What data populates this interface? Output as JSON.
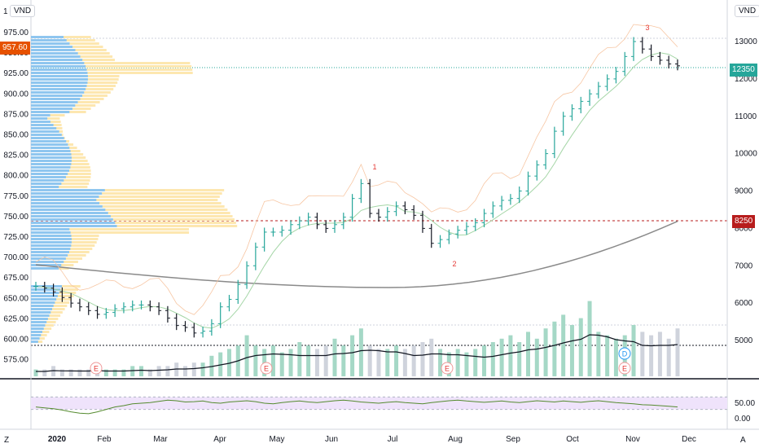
{
  "header": {
    "left_prefix": "1",
    "currency_left": "VND",
    "currency_right": "VND"
  },
  "badges": {
    "left_price": "957.60",
    "right_price": "12350",
    "right_level": "8250",
    "left_color": "#e65100",
    "right_price_color": "#26a69a",
    "right_level_color": "#b71c1c"
  },
  "footer": {
    "left_key": "Z",
    "right_key": "A"
  },
  "chart_data": [
    {
      "type": "candlestick",
      "title": "",
      "x_ticks": [
        "2020",
        "Feb",
        "Mar",
        "Apr",
        "May",
        "Jun",
        "Jul",
        "Aug",
        "Sep",
        "Oct",
        "Nov",
        "Dec"
      ],
      "left_axis_ticks": [
        "975.00",
        "950.00",
        "925.00",
        "900.00",
        "875.00",
        "850.00",
        "825.00",
        "800.00",
        "775.00",
        "750.00",
        "725.00",
        "700.00",
        "675.00",
        "650.00",
        "625.00",
        "600.00",
        "575.00"
      ],
      "right_axis_ticks": [
        "13000",
        "12000",
        "11000",
        "10000",
        "9000",
        "8000",
        "7000",
        "6000",
        "5000"
      ],
      "ylim_right": [
        4600,
        13300
      ],
      "price_path": [
        [
          "Jan",
          6450
        ],
        [
          "Jan",
          6400
        ],
        [
          "Jan",
          6300
        ],
        [
          "Jan",
          6150
        ],
        [
          "Jan",
          6000
        ],
        [
          "Feb",
          5900
        ],
        [
          "Feb",
          5800
        ],
        [
          "Feb",
          5700
        ],
        [
          "Feb",
          5750
        ],
        [
          "Feb",
          5850
        ],
        [
          "Feb",
          5900
        ],
        [
          "Mar",
          5950
        ],
        [
          "Mar",
          5950
        ],
        [
          "Mar",
          5900
        ],
        [
          "Mar",
          5800
        ],
        [
          "Mar",
          5600
        ],
        [
          "Mar",
          5400
        ],
        [
          "Mar",
          5350
        ],
        [
          "Apr",
          5200
        ],
        [
          "Apr",
          5250
        ],
        [
          "Apr",
          5450
        ],
        [
          "Apr",
          5900
        ],
        [
          "Apr",
          6100
        ],
        [
          "Apr",
          6500
        ],
        [
          "May",
          7000
        ],
        [
          "May",
          7500
        ],
        [
          "May",
          7900
        ],
        [
          "May",
          7900
        ],
        [
          "May",
          7950
        ],
        [
          "Jun",
          8100
        ],
        [
          "Jun",
          8200
        ],
        [
          "Jun",
          8300
        ],
        [
          "Jun",
          8100
        ],
        [
          "Jun",
          8000
        ],
        [
          "Jun",
          8100
        ],
        [
          "Jun",
          8300
        ],
        [
          "Jun",
          8800
        ],
        [
          "Jun",
          9200
        ],
        [
          "Jul",
          8400
        ],
        [
          "Jul",
          8300
        ],
        [
          "Jul",
          8450
        ],
        [
          "Jul",
          8600
        ],
        [
          "Jul",
          8500
        ],
        [
          "Jul",
          8350
        ],
        [
          "Jul",
          8000
        ],
        [
          "Aug",
          7600
        ],
        [
          "Aug",
          7700
        ],
        [
          "Aug",
          7850
        ],
        [
          "Aug",
          7950
        ],
        [
          "Aug",
          8050
        ],
        [
          "Aug",
          8150
        ],
        [
          "Sep",
          8400
        ],
        [
          "Sep",
          8600
        ],
        [
          "Sep",
          8750
        ],
        [
          "Sep",
          8800
        ],
        [
          "Sep",
          9000
        ],
        [
          "Sep",
          9400
        ],
        [
          "Sep",
          9700
        ],
        [
          "Oct",
          10000
        ],
        [
          "Oct",
          10600
        ],
        [
          "Oct",
          11000
        ],
        [
          "Oct",
          11200
        ],
        [
          "Oct",
          11400
        ],
        [
          "Oct",
          11600
        ],
        [
          "Oct",
          11800
        ],
        [
          "Oct",
          12000
        ],
        [
          "Nov",
          12200
        ],
        [
          "Nov",
          12600
        ],
        [
          "Nov",
          13000
        ],
        [
          "Nov",
          12800
        ],
        [
          "Nov",
          12600
        ],
        [
          "Nov",
          12500
        ],
        [
          "Nov",
          12400
        ],
        [
          "Nov",
          12350
        ]
      ],
      "volume_relative": [
        0.2,
        0.2,
        0.3,
        0.2,
        0.2,
        0.2,
        0.2,
        0.3,
        0.2,
        0.2,
        0.2,
        0.3,
        0.3,
        0.2,
        0.3,
        0.3,
        0.4,
        0.3,
        0.4,
        0.4,
        0.6,
        0.7,
        0.8,
        0.9,
        1.2,
        0.9,
        0.8,
        0.9,
        0.7,
        0.8,
        1.0,
        0.9,
        0.8,
        0.9,
        1.1,
        0.9,
        1.2,
        1.4,
        0.9,
        0.8,
        0.8,
        0.9,
        0.8,
        0.9,
        1.0,
        1.1,
        0.8,
        0.7,
        0.8,
        0.7,
        0.8,
        0.9,
        1.0,
        1.1,
        1.2,
        1.0,
        1.3,
        1.1,
        1.4,
        1.6,
        1.8,
        1.5,
        1.7,
        2.2,
        1.3,
        1.2,
        1.1,
        1.2,
        1.5,
        1.3,
        1.2,
        1.3,
        1.1,
        1.4
      ],
      "wave_labels": [
        {
          "label": "1",
          "color": "#e53935"
        },
        {
          "label": "2",
          "color": "#e53935"
        },
        {
          "label": "3",
          "color": "#e53935"
        }
      ],
      "event_markers": [
        {
          "label": "E"
        },
        {
          "label": "E"
        },
        {
          "label": "E"
        },
        {
          "label": "E"
        },
        {
          "label": "D"
        }
      ]
    },
    {
      "type": "line",
      "title": "",
      "y_ticks": [
        "50.00",
        "0.00"
      ],
      "ylim": [
        0,
        100
      ],
      "values": [
        38,
        35,
        32,
        28,
        22,
        18,
        16,
        22,
        30,
        38,
        42,
        48,
        50,
        52,
        56,
        60,
        58,
        54,
        55,
        57,
        52,
        50,
        54,
        56,
        58,
        55,
        50,
        48,
        52,
        55,
        57,
        54,
        52,
        55,
        58,
        60,
        57,
        54,
        52,
        50,
        53,
        55,
        52,
        50,
        48,
        52,
        55,
        58,
        60,
        57,
        55,
        53,
        55,
        57,
        54,
        52,
        55,
        58,
        56,
        54,
        57,
        55,
        53,
        56,
        58,
        55,
        52,
        50,
        48,
        45,
        44,
        42,
        40,
        38
      ],
      "band": [
        30,
        70
      ]
    }
  ]
}
